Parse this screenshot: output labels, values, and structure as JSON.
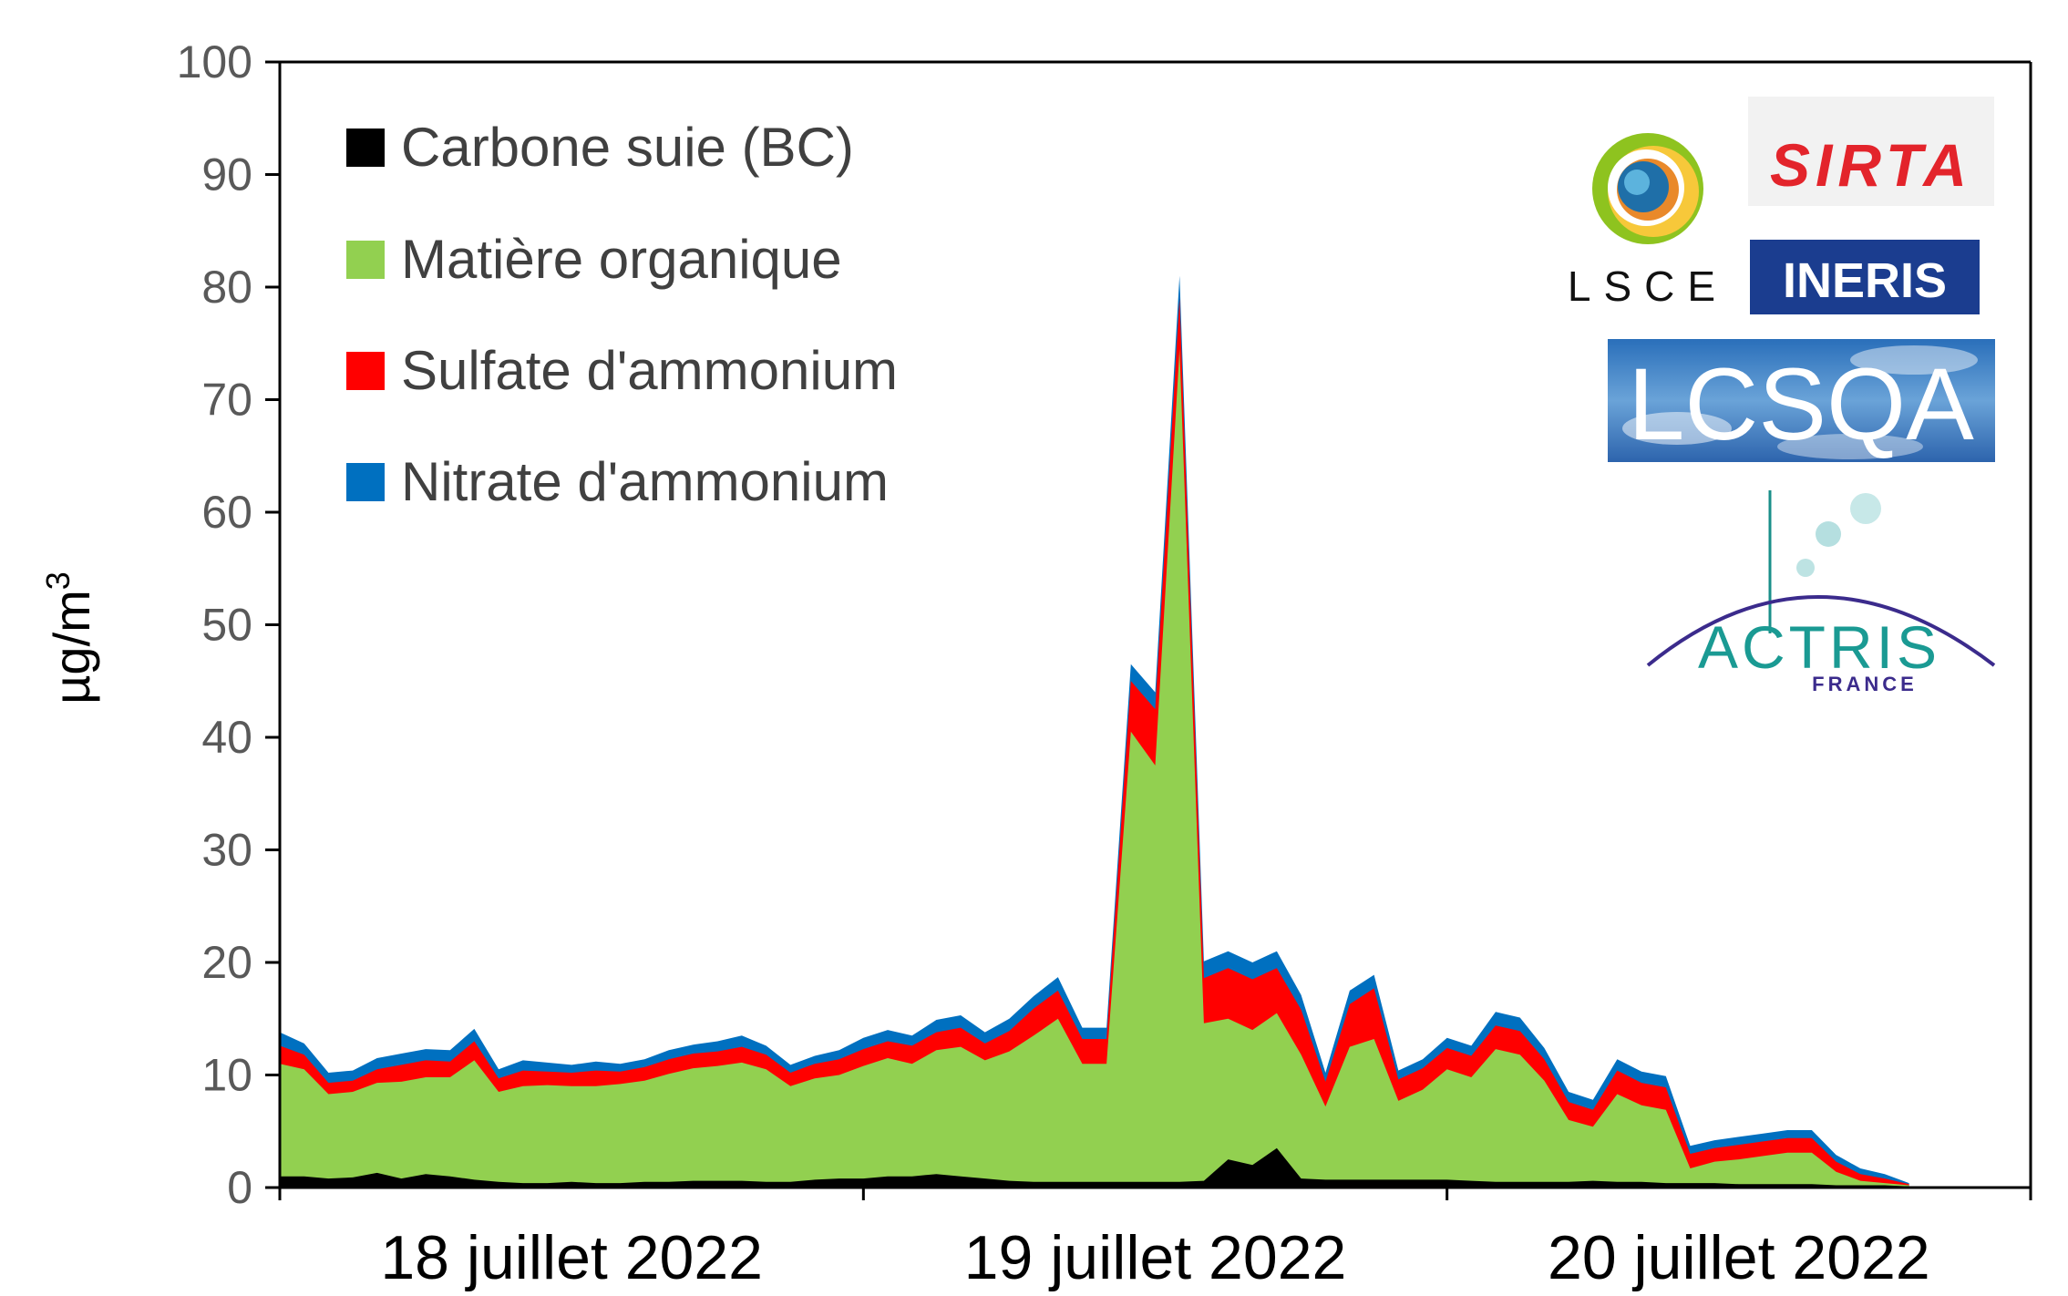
{
  "chart_data": {
    "type": "area",
    "stacked": true,
    "title": "",
    "xlabel": "",
    "ylabel": "µg/m",
    "ylabel_superscript": "3",
    "ylim": [
      0,
      100
    ],
    "yticks": [
      0,
      10,
      20,
      30,
      40,
      50,
      60,
      70,
      80,
      90,
      100
    ],
    "grid": false,
    "legend_position": "top-left",
    "x_range_hours": [
      0,
      72
    ],
    "x_day_ticks": [
      0,
      24,
      48,
      72
    ],
    "x_labels": [
      {
        "text": "18 juillet 2022",
        "center_hour": 12
      },
      {
        "text": "19 juillet 2022",
        "center_hour": 36
      },
      {
        "text": "20 juillet 2022",
        "center_hour": 60
      }
    ],
    "x_hours": [
      0,
      1,
      2,
      3,
      4,
      5,
      6,
      7,
      8,
      9,
      10,
      11,
      12,
      13,
      14,
      15,
      16,
      17,
      18,
      19,
      20,
      21,
      22,
      23,
      24,
      25,
      26,
      27,
      28,
      29,
      30,
      31,
      32,
      33,
      34,
      35,
      36,
      37,
      38,
      39,
      40,
      41,
      42,
      43,
      44,
      45,
      46,
      47,
      48,
      49,
      50,
      51,
      52,
      53,
      54,
      55,
      56,
      57,
      58,
      59,
      60,
      61,
      62,
      63,
      64,
      65,
      66,
      67
    ],
    "series": [
      {
        "name": "Carbone suie (BC)",
        "color": "#000000",
        "values": [
          1.0,
          1.0,
          0.8,
          0.9,
          1.3,
          0.8,
          1.2,
          1.0,
          0.7,
          0.5,
          0.4,
          0.4,
          0.5,
          0.4,
          0.4,
          0.5,
          0.5,
          0.6,
          0.6,
          0.6,
          0.5,
          0.5,
          0.7,
          0.8,
          0.8,
          1.0,
          1.0,
          1.2,
          1.0,
          0.8,
          0.6,
          0.5,
          0.5,
          0.5,
          0.5,
          0.5,
          0.5,
          0.5,
          0.6,
          2.5,
          2.0,
          3.5,
          0.8,
          0.7,
          0.7,
          0.7,
          0.7,
          0.7,
          0.7,
          0.6,
          0.5,
          0.5,
          0.5,
          0.5,
          0.6,
          0.5,
          0.5,
          0.4,
          0.4,
          0.4,
          0.3,
          0.3,
          0.3,
          0.3,
          0.2,
          0.2,
          0.2,
          0.1
        ]
      },
      {
        "name": "Matière organique",
        "color": "#92d050",
        "values": [
          10.0,
          9.5,
          7.5,
          7.6,
          8.0,
          8.6,
          8.6,
          8.8,
          10.6,
          8.0,
          8.6,
          8.7,
          8.5,
          8.6,
          8.8,
          9.0,
          9.6,
          10.0,
          10.2,
          10.5,
          10.0,
          8.5,
          9.0,
          9.2,
          10.0,
          10.5,
          10.0,
          11.0,
          11.5,
          10.5,
          11.5,
          13.0,
          14.5,
          10.5,
          10.5,
          40.0,
          37.0,
          74.0,
          14.0,
          12.5,
          12.0,
          12.0,
          11.0,
          6.5,
          11.8,
          12.5,
          7.0,
          8.0,
          9.8,
          9.2,
          11.8,
          11.3,
          9.0,
          5.5,
          4.8,
          7.8,
          6.8,
          6.5,
          1.3,
          1.9,
          2.2,
          2.5,
          2.8,
          2.8,
          1.2,
          0.4,
          0.2,
          0.1
        ]
      },
      {
        "name": "Sulfate d'ammonium",
        "color": "#ff0000",
        "values": [
          1.6,
          1.3,
          1.0,
          1.0,
          1.2,
          1.5,
          1.5,
          1.4,
          1.7,
          1.2,
          1.4,
          1.2,
          1.2,
          1.4,
          1.1,
          1.2,
          1.3,
          1.3,
          1.3,
          1.4,
          1.3,
          1.2,
          1.3,
          1.4,
          1.5,
          1.5,
          1.6,
          1.6,
          1.7,
          1.5,
          1.8,
          2.4,
          2.5,
          2.2,
          2.2,
          4.5,
          5.0,
          4.5,
          4.0,
          4.5,
          4.5,
          4.0,
          4.0,
          2.2,
          3.8,
          4.5,
          1.9,
          1.9,
          1.9,
          1.9,
          2.1,
          2.1,
          1.9,
          1.6,
          1.5,
          2.1,
          2.0,
          2.0,
          1.3,
          1.2,
          1.3,
          1.3,
          1.3,
          1.3,
          0.9,
          0.6,
          0.4,
          0.1
        ]
      },
      {
        "name": "Nitrate d'ammonium",
        "color": "#0070c0",
        "values": [
          1.2,
          1.0,
          0.9,
          0.9,
          1.0,
          1.0,
          1.0,
          1.0,
          1.1,
          0.8,
          0.9,
          0.8,
          0.7,
          0.8,
          0.7,
          0.7,
          0.8,
          0.8,
          0.9,
          1.0,
          0.8,
          0.7,
          0.7,
          0.8,
          1.0,
          1.0,
          0.9,
          1.1,
          1.1,
          1.0,
          1.1,
          1.1,
          1.2,
          1.0,
          1.0,
          1.5,
          1.5,
          2.0,
          1.5,
          1.5,
          1.5,
          1.5,
          1.3,
          0.8,
          1.2,
          1.2,
          0.8,
          0.8,
          0.9,
          0.9,
          1.2,
          1.2,
          1.0,
          0.9,
          0.9,
          1.0,
          1.0,
          1.0,
          0.7,
          0.7,
          0.7,
          0.7,
          0.7,
          0.7,
          0.6,
          0.5,
          0.4,
          0.1
        ]
      }
    ]
  },
  "legend": {
    "items": [
      {
        "label": "Carbone suie (BC)",
        "color": "#000000"
      },
      {
        "label": "Matière organique",
        "color": "#92d050"
      },
      {
        "label": "Sulfate d'ammonium",
        "color": "#ff0000"
      },
      {
        "label": "Nitrate d'ammonium",
        "color": "#0070c0"
      }
    ]
  },
  "logos": {
    "lsce": "LSCE",
    "sirta": "SIRTA",
    "ineris": "INERIS",
    "lcsqa": "LCSQA",
    "actris": "ACTRIS",
    "actris_sub": "FRANCE"
  }
}
